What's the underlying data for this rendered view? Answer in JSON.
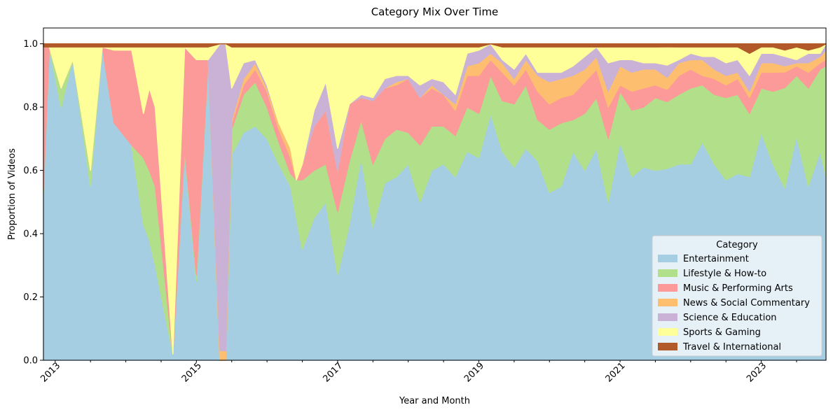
{
  "chart_data": {
    "type": "area",
    "stacked": true,
    "normalized": true,
    "title": "Category Mix Over Time",
    "xlabel": "Year and Month",
    "ylabel": "Proportion of Videos",
    "xlim": [
      "2012-11",
      "2023-12"
    ],
    "ylim": [
      0,
      1.05
    ],
    "x_tick_labels": [
      "2013",
      "2015",
      "2017",
      "2019",
      "2021",
      "2023"
    ],
    "y_tick_labels": [
      "0.0",
      "0.2",
      "0.4",
      "0.6",
      "0.8",
      "1.0"
    ],
    "legend_title": "Category",
    "legend_position": "lower-right",
    "grid": false,
    "x": [
      "2012-11",
      "2012-12",
      "2013-02",
      "2013-04",
      "2013-07",
      "2013-09",
      "2013-11",
      "2014-02",
      "2014-04",
      "2014-05",
      "2014-06",
      "2014-09",
      "2014-11",
      "2015-01",
      "2015-03",
      "2015-05",
      "2015-06",
      "2015-07",
      "2015-09",
      "2015-11",
      "2016-01",
      "2016-03",
      "2016-05",
      "2016-06",
      "2016-07",
      "2016-09",
      "2016-11",
      "2017-01",
      "2017-03",
      "2017-05",
      "2017-07",
      "2017-09",
      "2017-11",
      "2018-01",
      "2018-03",
      "2018-05",
      "2018-07",
      "2018-09",
      "2018-11",
      "2019-01",
      "2019-03",
      "2019-05",
      "2019-07",
      "2019-09",
      "2019-11",
      "2020-01",
      "2020-03",
      "2020-05",
      "2020-07",
      "2020-09",
      "2020-11",
      "2021-01",
      "2021-03",
      "2021-05",
      "2021-07",
      "2021-09",
      "2021-11",
      "2022-01",
      "2022-03",
      "2022-05",
      "2022-07",
      "2022-09",
      "2022-11",
      "2023-01",
      "2023-03",
      "2023-05",
      "2023-07",
      "2023-09",
      "2023-11",
      "2023-12"
    ],
    "series": [
      {
        "name": "Entertainment",
        "color": "#a6cee3",
        "values": [
          0.53,
          0.99,
          0.8,
          0.95,
          0.55,
          0.99,
          0.75,
          0.68,
          0.43,
          0.38,
          0.3,
          0.02,
          0.66,
          0.25,
          0.95,
          0.0,
          0.0,
          0.65,
          0.72,
          0.74,
          0.7,
          0.62,
          0.55,
          0.45,
          0.35,
          0.45,
          0.5,
          0.27,
          0.43,
          0.64,
          0.42,
          0.56,
          0.58,
          0.62,
          0.5,
          0.6,
          0.62,
          0.58,
          0.66,
          0.64,
          0.78,
          0.66,
          0.61,
          0.67,
          0.63,
          0.53,
          0.55,
          0.66,
          0.6,
          0.67,
          0.5,
          0.69,
          0.58,
          0.61,
          0.6,
          0.63,
          0.62,
          0.62,
          0.69,
          0.62,
          0.57,
          0.59,
          0.58,
          0.72,
          0.62,
          0.55,
          0.71,
          0.55,
          0.66,
          0.58
        ]
      },
      {
        "name": "Lifestyle & How-to",
        "color": "#b2df8a",
        "values": [
          0.01,
          0.0,
          0.06,
          0.0,
          0.05,
          0.0,
          0.0,
          0.0,
          0.21,
          0.22,
          0.25,
          0.0,
          0.01,
          0.02,
          0.0,
          0.0,
          0.0,
          0.08,
          0.12,
          0.14,
          0.1,
          0.07,
          0.04,
          0.12,
          0.22,
          0.15,
          0.12,
          0.2,
          0.2,
          0.12,
          0.2,
          0.14,
          0.15,
          0.1,
          0.18,
          0.14,
          0.12,
          0.13,
          0.14,
          0.14,
          0.12,
          0.16,
          0.2,
          0.2,
          0.13,
          0.2,
          0.2,
          0.1,
          0.18,
          0.16,
          0.2,
          0.16,
          0.21,
          0.19,
          0.23,
          0.22,
          0.22,
          0.24,
          0.18,
          0.22,
          0.26,
          0.25,
          0.2,
          0.14,
          0.23,
          0.32,
          0.19,
          0.31,
          0.26,
          0.35
        ]
      },
      {
        "name": "Music & Performing Arts",
        "color": "#fb9a99",
        "values": [
          0.45,
          0.0,
          0.0,
          0.0,
          0.0,
          0.0,
          0.23,
          0.3,
          0.14,
          0.26,
          0.25,
          0.0,
          0.32,
          0.68,
          0.0,
          0.0,
          0.0,
          0.02,
          0.03,
          0.04,
          0.05,
          0.04,
          0.05,
          0.0,
          0.05,
          0.14,
          0.17,
          0.13,
          0.18,
          0.07,
          0.2,
          0.16,
          0.14,
          0.17,
          0.15,
          0.12,
          0.1,
          0.08,
          0.1,
          0.12,
          0.05,
          0.09,
          0.06,
          0.05,
          0.09,
          0.08,
          0.08,
          0.08,
          0.1,
          0.09,
          0.1,
          0.02,
          0.06,
          0.06,
          0.04,
          0.04,
          0.06,
          0.06,
          0.03,
          0.05,
          0.04,
          0.05,
          0.05,
          0.05,
          0.06,
          0.05,
          0.03,
          0.05,
          0.02,
          0.02
        ]
      },
      {
        "name": "News & Social Commentary",
        "color": "#fdbf6f",
        "values": [
          0.0,
          0.0,
          0.0,
          0.0,
          0.0,
          0.0,
          0.0,
          0.0,
          0.0,
          0.0,
          0.0,
          0.0,
          0.0,
          0.0,
          0.0,
          0.03,
          0.03,
          0.01,
          0.02,
          0.02,
          0.01,
          0.02,
          0.03,
          0.0,
          0.0,
          0.0,
          0.0,
          0.0,
          0.0,
          0.0,
          0.0,
          0.0,
          0.01,
          0.0,
          0.0,
          0.01,
          0.0,
          0.02,
          0.03,
          0.04,
          0.02,
          0.03,
          0.02,
          0.03,
          0.05,
          0.07,
          0.06,
          0.06,
          0.04,
          0.04,
          0.05,
          0.06,
          0.06,
          0.06,
          0.05,
          0.04,
          0.04,
          0.03,
          0.05,
          0.03,
          0.03,
          0.02,
          0.02,
          0.03,
          0.03,
          0.02,
          0.01,
          0.03,
          0.02,
          0.03
        ]
      },
      {
        "name": "Science & Education",
        "color": "#cab2d6",
        "values": [
          0.0,
          0.0,
          0.0,
          0.0,
          0.0,
          0.0,
          0.0,
          0.0,
          0.0,
          0.0,
          0.0,
          0.0,
          0.0,
          0.0,
          0.0,
          0.97,
          0.97,
          0.1,
          0.05,
          0.01,
          0.01,
          0.0,
          0.0,
          0.0,
          0.0,
          0.05,
          0.09,
          0.07,
          0.0,
          0.01,
          0.01,
          0.03,
          0.02,
          0.01,
          0.04,
          0.02,
          0.04,
          0.03,
          0.04,
          0.04,
          0.03,
          0.01,
          0.03,
          0.02,
          0.01,
          0.03,
          0.02,
          0.03,
          0.04,
          0.03,
          0.09,
          0.02,
          0.04,
          0.02,
          0.02,
          0.04,
          0.01,
          0.02,
          0.01,
          0.04,
          0.04,
          0.04,
          0.05,
          0.03,
          0.03,
          0.03,
          0.01,
          0.03,
          0.01,
          0.02
        ]
      },
      {
        "name": "Sports & Gaming",
        "color": "#ffff99",
        "values": [
          0.0,
          0.0,
          0.13,
          0.04,
          0.39,
          0.0,
          0.01,
          0.01,
          0.21,
          0.13,
          0.19,
          0.97,
          0.0,
          0.04,
          0.04,
          0.0,
          0.0,
          0.13,
          0.05,
          0.04,
          0.12,
          0.24,
          0.32,
          0.42,
          0.37,
          0.2,
          0.11,
          0.32,
          0.18,
          0.15,
          0.16,
          0.1,
          0.09,
          0.09,
          0.12,
          0.1,
          0.11,
          0.15,
          0.02,
          0.01,
          0.0,
          0.04,
          0.07,
          0.02,
          0.08,
          0.08,
          0.08,
          0.06,
          0.03,
          0.0,
          0.05,
          0.04,
          0.04,
          0.05,
          0.05,
          0.06,
          0.04,
          0.02,
          0.03,
          0.03,
          0.05,
          0.04,
          0.07,
          0.02,
          0.02,
          0.02,
          0.04,
          0.01,
          0.02,
          0.0
        ]
      },
      {
        "name": "Travel & International",
        "color": "#b15928",
        "values": [
          0.01,
          0.01,
          0.01,
          0.01,
          0.01,
          0.01,
          0.01,
          0.01,
          0.01,
          0.01,
          0.01,
          0.01,
          0.01,
          0.01,
          0.01,
          0.0,
          0.0,
          0.01,
          0.01,
          0.01,
          0.01,
          0.01,
          0.01,
          0.01,
          0.01,
          0.01,
          0.01,
          0.01,
          0.01,
          0.01,
          0.01,
          0.01,
          0.01,
          0.01,
          0.01,
          0.01,
          0.01,
          0.01,
          0.01,
          0.01,
          0.0,
          0.01,
          0.01,
          0.01,
          0.01,
          0.01,
          0.01,
          0.01,
          0.01,
          0.01,
          0.01,
          0.01,
          0.01,
          0.01,
          0.01,
          0.01,
          0.01,
          0.01,
          0.01,
          0.01,
          0.01,
          0.01,
          0.03,
          0.01,
          0.01,
          0.02,
          0.01,
          0.02,
          0.01,
          0.0
        ]
      }
    ]
  }
}
